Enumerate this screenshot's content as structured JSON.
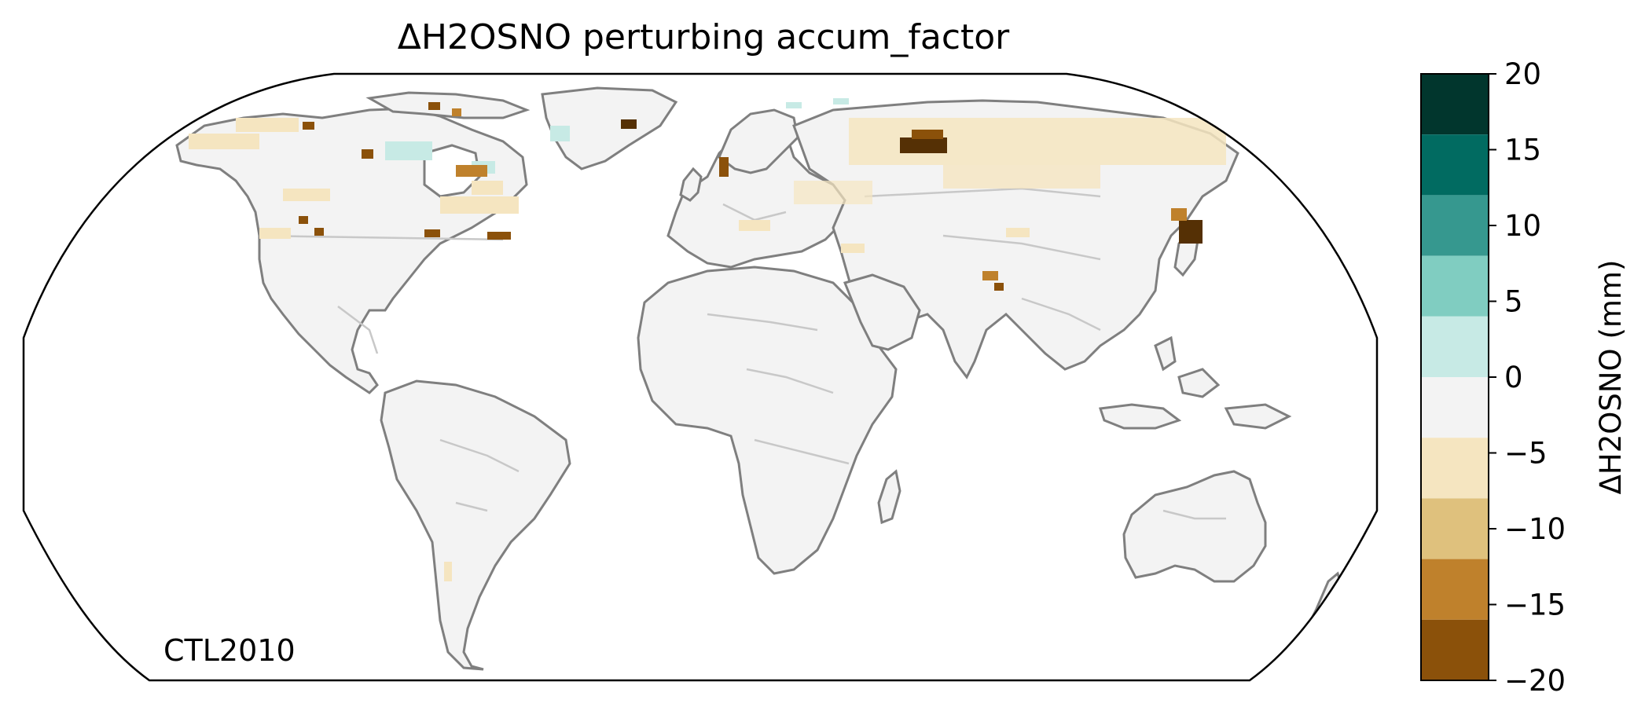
{
  "title": "ΔH2OSNO perturbing accum_factor",
  "corner_label": "CTL2010",
  "colorbar": {
    "label": "ΔH2OSNO (mm)",
    "ticks": [
      "20",
      "15",
      "10",
      "5",
      "0",
      "−5",
      "−10",
      "−15",
      "−20"
    ],
    "range": [
      -20,
      20
    ],
    "bins": [
      {
        "from": 16,
        "to": 20,
        "color": "#01362d"
      },
      {
        "from": 12,
        "to": 16,
        "color": "#016b61"
      },
      {
        "from": 8,
        "to": 12,
        "color": "#36988f"
      },
      {
        "from": 4,
        "to": 8,
        "color": "#80cdc1"
      },
      {
        "from": 0,
        "to": 4,
        "color": "#c7eae5"
      },
      {
        "from": -4,
        "to": 0,
        "color": "#f3f3f3"
      },
      {
        "from": -8,
        "to": -4,
        "color": "#f5e5c0"
      },
      {
        "from": -12,
        "to": -8,
        "color": "#dfc17d"
      },
      {
        "from": -16,
        "to": -12,
        "color": "#bf812c"
      },
      {
        "from": -20,
        "to": -16,
        "color": "#8b510a"
      }
    ],
    "extra_dark": "#553005"
  },
  "colors": {
    "coastline": "#7f7f7f",
    "borders": "#c8c8c8",
    "land_fill": "#f3f3f3",
    "frame": "#000000"
  }
}
